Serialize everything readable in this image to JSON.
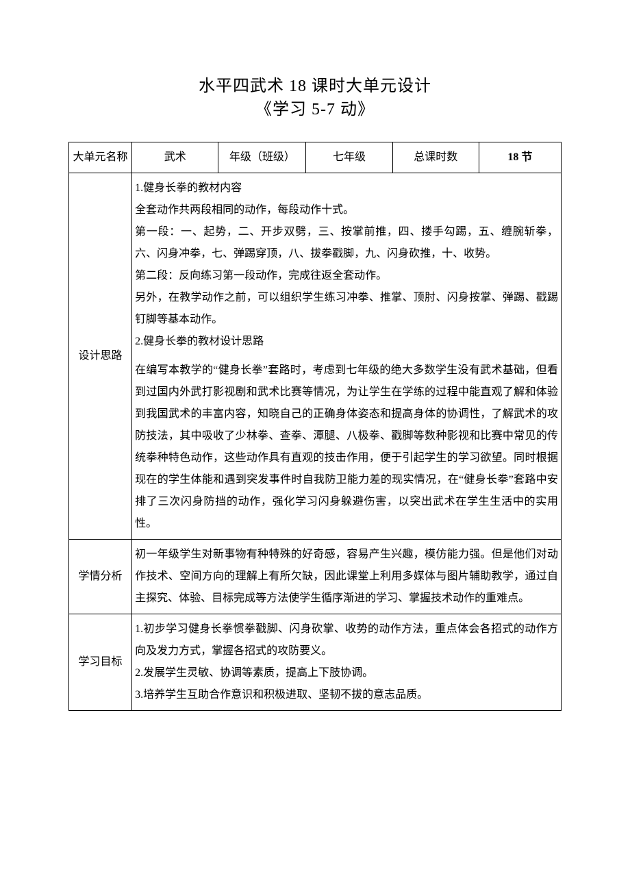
{
  "title_main": "水平四武术 18 课时大单元设计",
  "title_sub": "《学习 5-7 动》",
  "header_row": {
    "label1": "大单元名称",
    "value1": "武术",
    "label2": "年级（班级）",
    "value2": "七年级",
    "label3": "总课时数",
    "value3": "18 节"
  },
  "sections": {
    "design": {
      "label": "设计思路",
      "p1": "1.健身长拳的教材内容",
      "p2": "全套动作共两段相同的动作，每段动作十式。",
      "p3": "第一段：一、起势，二、开步双劈，三、按掌前推，四、搂手勾踢，五、缠腕斩拳，六、闪身冲拳，七、弹踢穿顶，八、拔拳戳脚，九、闪身砍推，十、收势。",
      "p4": "第二段：反向练习第一段动作，完成往返全套动作。",
      "p5": "另外，在教学动作之前，可以组织学生练习冲拳、推掌、顶肘、闪身按掌、弹踢、戳踢钉脚等基本动作。",
      "p6": "2.健身长拳的教材设计思路",
      "p7": "在编写本教学的“健身长拳”套路时，考虑到七年级的绝大多数学生没有武术基础，但看到过国内外武打影视剧和武术比赛等情况，为让学生在学练的过程中能直观了解和体验到我国武术的丰富内容，知晓自己的正确身体姿态和提高身体的协调性，了解武术的攻防技法，其中吸收了少林拳、查拳、潭腿、八极拳、戳脚等数种影视和比赛中常见的传统拳种特色动作，这些动作具有直观的技击作用，便于引起学生的学习欲望。同时根据现在的学生体能和遇到突发事件时自我防卫能力差的现实情况，在“健身长拳”套路中安排了三次闪身防挡的动作，强化学习闪身躲避伤害，以突出武术在学生生活中的实用性。"
    },
    "analysis": {
      "label": "学情分析",
      "text": "初一年级学生对新事物有种特殊的好奇感，容易产生兴趣，模仿能力强。但是他们对动作技术、空间方向的理解上有所欠缺，因此课堂上利用多媒体与图片辅助教学，通过自主探究、体验、目标完成等方法使学生循序渐进的学习、掌握技术动作的重难点。"
    },
    "goals": {
      "label": "学习目标",
      "p1": "1.初步学习健身长拳惯拳戳脚、闪身砍掌、收势的动作方法，重点体会各招式的动作方向及发力方式，掌握各招式的攻防要义。",
      "p2": "2.发展学生灵敏、协调等素质，提高上下肢协调。",
      "p3": "3.培养学生互助合作意识和积极进取、坚韧不拔的意志品质。"
    }
  }
}
